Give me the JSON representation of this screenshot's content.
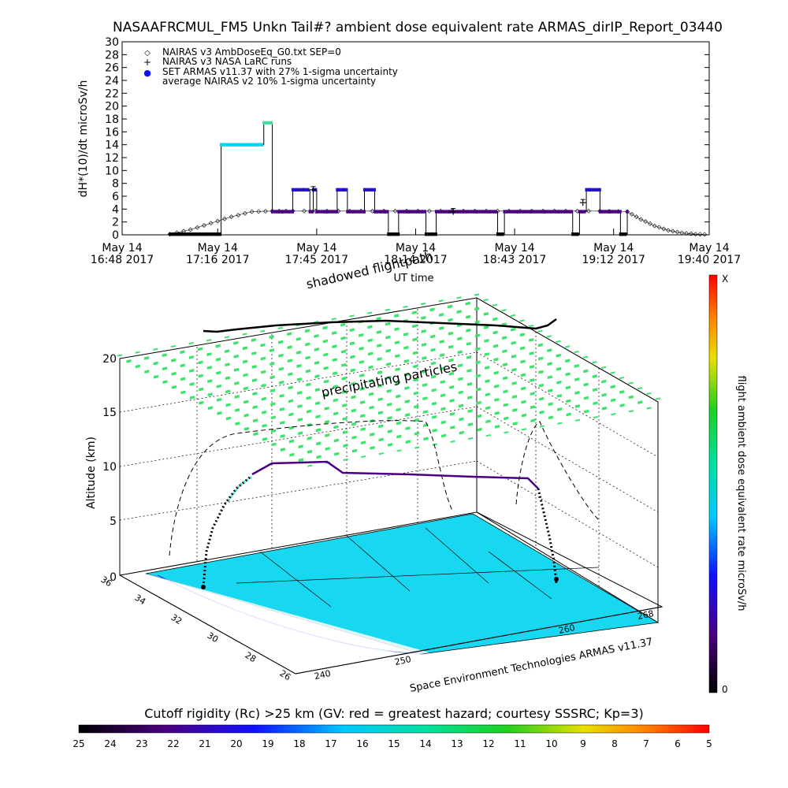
{
  "title": "NASAAFRCMUL_FM5 Unkn Tail#? ambient dose equivalent rate ARMAS_dirIP_Report_03440",
  "chart_data": [
    {
      "type": "scatter",
      "ylabel": "dH*(10)/dt microSv/h",
      "xlabel": "UT time",
      "ylim": [
        0,
        30
      ],
      "yticks": [
        0,
        2,
        4,
        6,
        8,
        10,
        12,
        14,
        16,
        18,
        20,
        22,
        24,
        26,
        28,
        30
      ],
      "xlim": [
        0,
        172
      ],
      "xticks": [
        {
          "t": 0,
          "line1": "May 14",
          "line2": "16:48 2017"
        },
        {
          "t": 28,
          "line1": "May 14",
          "line2": "17:16 2017"
        },
        {
          "t": 57,
          "line1": "May 14",
          "line2": "17:45 2017"
        },
        {
          "t": 86,
          "line1": "May 14",
          "line2": "18:14 2017"
        },
        {
          "t": 115,
          "line1": "May 14",
          "line2": "18:43 2017"
        },
        {
          "t": 144,
          "line1": "May 14",
          "line2": "19:12 2017"
        },
        {
          "t": 172,
          "line1": "May 14",
          "line2": "19:40 2017"
        }
      ],
      "annotation": "shadowed flightpath",
      "legend": [
        {
          "symbol": "◇",
          "color": "#000000",
          "label": "NAIRAS v3 AmbDoseEq_G0.txt SEP=0"
        },
        {
          "symbol": "+",
          "color": "#000000",
          "label": "NAIRAS v3 NASA LaRC runs"
        },
        {
          "symbol": "●",
          "color": "#1010ff",
          "label": "SET ARMAS v11.37 with 27% 1-sigma uncertainty"
        },
        {
          "symbol": "",
          "color": "#000000",
          "label": "average NAIRAS v2 10% 1-sigma uncertainty"
        }
      ],
      "series": [
        {
          "name": "NAIRAS v3 AmbDoseEq_G0.txt SEP=0",
          "x": [
            14,
            20,
            26,
            32,
            38,
            44,
            50,
            60,
            70,
            80,
            90,
            100,
            110,
            120,
            130,
            140,
            148,
            152,
            156,
            160,
            164,
            168,
            172
          ],
          "y": [
            0.1,
            0.8,
            1.8,
            2.8,
            3.6,
            3.7,
            3.7,
            3.7,
            3.7,
            3.7,
            3.7,
            3.7,
            3.7,
            3.7,
            3.7,
            3.7,
            3.6,
            2.4,
            1.4,
            0.7,
            0.3,
            0.1,
            0.05
          ]
        },
        {
          "name": "NAIRAS v3 NASA LaRC runs",
          "x": [
            56,
            97,
            135
          ],
          "y": [
            7.0,
            3.6,
            5.0
          ]
        },
        {
          "name": "SET ARMAS v11.37 with 27% 1-sigma uncertainty",
          "x": [
            14,
            22,
            28,
            29,
            32,
            35,
            38,
            41,
            41.5,
            44,
            47,
            50,
            53,
            55,
            56,
            57,
            60,
            63,
            65,
            66,
            68,
            71,
            74,
            76,
            77,
            78,
            81,
            84,
            88,
            89,
            92,
            96,
            100,
            104,
            108,
            110,
            112,
            116,
            120,
            124,
            128,
            132,
            134,
            136,
            137,
            140,
            143,
            146,
            148
          ],
          "y": [
            0.1,
            0.1,
            0.1,
            14.0,
            14.0,
            14.0,
            14.0,
            14.0,
            17.4,
            3.6,
            3.6,
            7.0,
            7.0,
            3.6,
            7.0,
            3.6,
            3.6,
            7.0,
            7.0,
            3.6,
            3.6,
            7.0,
            3.6,
            3.6,
            3.6,
            0.1,
            3.6,
            3.6,
            3.6,
            0.1,
            3.6,
            3.6,
            3.6,
            3.6,
            3.6,
            0.1,
            3.6,
            3.6,
            3.6,
            3.6,
            3.6,
            0.1,
            3.6,
            7.0,
            7.0,
            3.6,
            3.6,
            0.1,
            3.6
          ]
        }
      ]
    },
    {
      "type": "scatter",
      "ylabel": "Altitude (km)",
      "zticks": [
        0,
        5,
        10,
        15,
        20
      ],
      "lat_ticks": [
        36,
        34,
        32,
        30,
        28,
        26
      ],
      "lon_ticks": [
        240,
        250,
        260,
        268
      ],
      "labels": {
        "particles": "precipitating particles",
        "credit": "Space Environment Technologies ARMAS v11.37",
        "colorbar": "flight ambient dose equivalent rate microSv/h",
        "colorbar_top": "X",
        "colorbar_bottom": "0"
      },
      "flight_altitude_km": [
        0,
        3,
        6,
        9,
        10.5,
        10.5,
        9.8,
        9.8,
        9.5,
        7,
        4,
        0
      ]
    },
    {
      "type": "heatmap",
      "title": "Cutoff rigidity (Rc) >25 km (GV: red = greatest hazard; courtesy SSSRC; Kp=3)",
      "ticks": [
        25,
        24,
        23,
        22,
        21,
        20,
        19,
        18,
        17,
        16,
        15,
        14,
        13,
        12,
        11,
        10,
        9,
        8,
        7,
        6,
        5
      ]
    }
  ]
}
